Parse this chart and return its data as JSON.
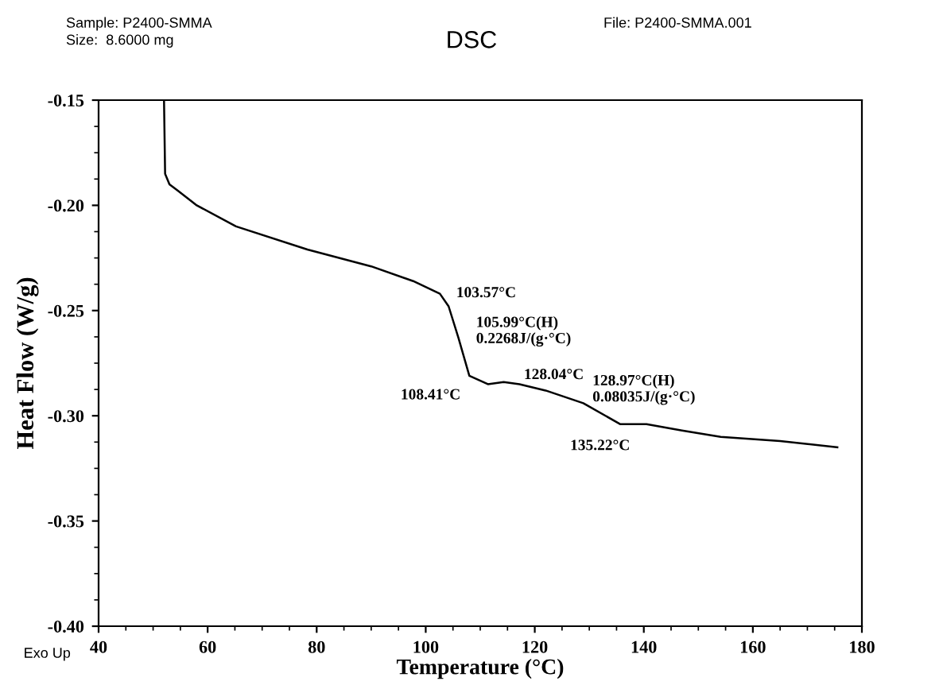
{
  "chart_data": {
    "type": "line",
    "title": "DSC",
    "xlabel": "Temperature (°C)",
    "ylabel": "Heat Flow (W/g)",
    "x": [
      52.0,
      52.2,
      53.0,
      54.5,
      58.0,
      65.2,
      78.3,
      90.0,
      97.7,
      102.6,
      104.2,
      106.0,
      108.0,
      111.4,
      114.3,
      117.2,
      122.0,
      128.9,
      135.7,
      140.5,
      147.0,
      154.1,
      165.0,
      175.5
    ],
    "series": [
      {
        "color": "#000000",
        "values": [
          -0.15,
          -0.185,
          -0.19,
          -0.193,
          -0.2,
          -0.21,
          -0.221,
          -0.229,
          -0.236,
          -0.242,
          -0.248,
          -0.263,
          -0.281,
          -0.285,
          -0.284,
          -0.285,
          -0.288,
          -0.294,
          -0.304,
          -0.304,
          -0.307,
          -0.31,
          -0.312,
          -0.315
        ]
      }
    ],
    "xlim": [
      40,
      180
    ],
    "xticks": [
      40,
      60,
      80,
      100,
      120,
      140,
      160,
      180
    ],
    "ylim": [
      -0.4,
      -0.15
    ],
    "yticks": [
      {
        "value": -0.4,
        "label": "-0.40"
      },
      {
        "value": -0.35,
        "label": "-0.35"
      },
      {
        "value": -0.3,
        "label": "-0.30"
      },
      {
        "value": -0.25,
        "label": "-0.25"
      },
      {
        "value": -0.2,
        "label": "-0.20"
      },
      {
        "value": -0.15,
        "label": "-0.15"
      }
    ],
    "grid": false,
    "marker": "none",
    "line_style": "solid",
    "annotations": [
      "Sample: P2400-SMMA",
      "Size:  8.6000 mg",
      "File: P2400-SMMA.001",
      "Exo Up",
      {
        "text": "103.57°C",
        "x": 103.57,
        "y": -0.244
      },
      {
        "text": "105.99°C(H)\n0.2268J/(g·°C)",
        "x": 105.99,
        "y": -0.262
      },
      {
        "text": "108.41°C",
        "x": 108.41,
        "y": -0.282
      },
      {
        "text": "128.04°C",
        "x": 117.2,
        "y": -0.285
      },
      {
        "text": "128.97°C(H)\n0.08035J/(g·°C)",
        "x": 128.97,
        "y": -0.296
      },
      {
        "text": "135.22°C",
        "x": 135.22,
        "y": -0.304
      }
    ]
  }
}
